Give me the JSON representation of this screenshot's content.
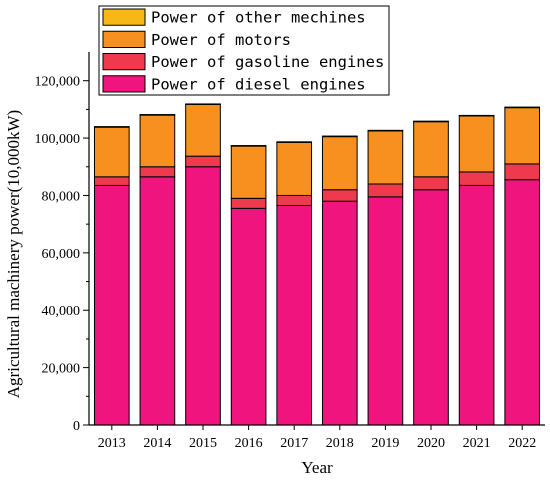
{
  "chart_data": {
    "type": "bar",
    "stacked": true,
    "categories": [
      "2013",
      "2014",
      "2015",
      "2016",
      "2017",
      "2018",
      "2019",
      "2020",
      "2021",
      "2022"
    ],
    "series": [
      {
        "name": "Power of diesel engines",
        "color": "#F0147F",
        "values": [
          83500,
          86500,
          90000,
          75500,
          76500,
          78000,
          79500,
          82000,
          83500,
          85500
        ]
      },
      {
        "name": "Power of gasoline engines",
        "color": "#EE3A4C",
        "values": [
          3000,
          3500,
          3700,
          3500,
          3500,
          4000,
          4500,
          4500,
          4700,
          5500
        ]
      },
      {
        "name": "Power of motors",
        "color": "#F7901E",
        "values": [
          17300,
          18000,
          18000,
          18200,
          18500,
          18500,
          18500,
          19200,
          19500,
          19600
        ]
      },
      {
        "name": "Power of other mechines",
        "color": "#F7B815",
        "values": [
          200,
          200,
          200,
          200,
          200,
          200,
          200,
          200,
          200,
          200
        ]
      }
    ],
    "legend_order": [
      "Power of other mechines",
      "Power of motors",
      "Power of gasoline engines",
      "Power of diesel engines"
    ],
    "xlabel": "Year",
    "ylabel": "Agricultural machinery power(10,000kW)",
    "ylim": [
      0,
      130000
    ],
    "yticks": [
      0,
      20000,
      40000,
      60000,
      80000,
      100000,
      120000
    ],
    "ytick_labels": [
      "0",
      "20,000",
      "40,000",
      "60,000",
      "80,000",
      "100,000",
      "120,000"
    ],
    "grid": false,
    "legend_position": "top"
  }
}
